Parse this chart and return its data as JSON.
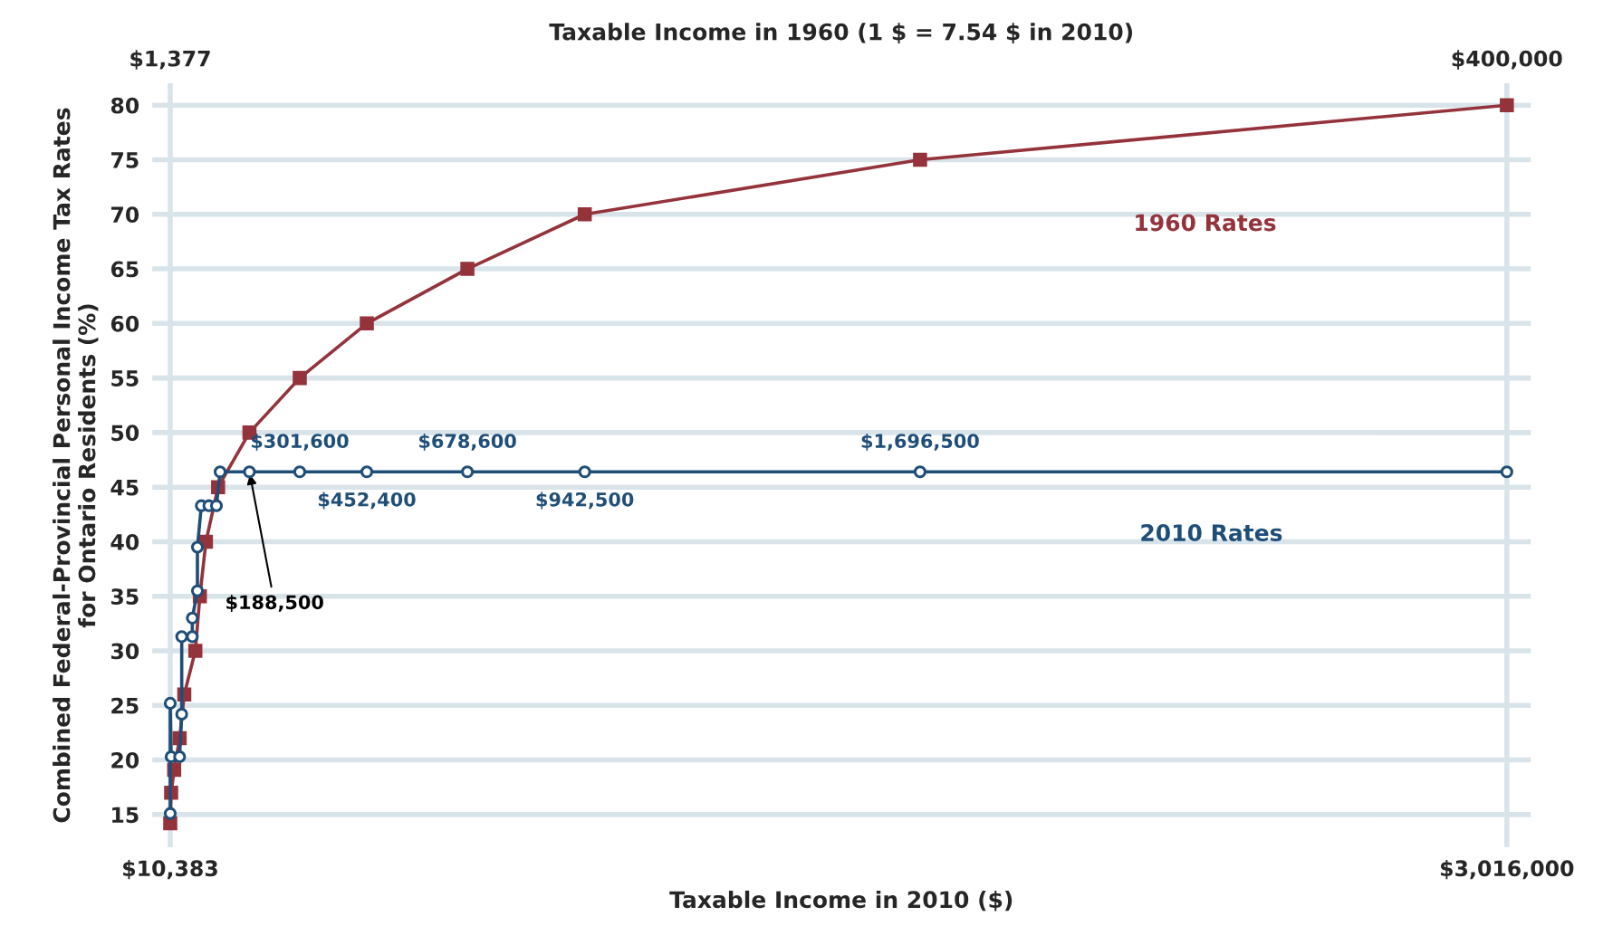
{
  "chart_data": {
    "type": "line",
    "xlabel": "Taxable Income in 2010 ($)",
    "x2label": "Taxable Income in 1960 (1 $ = 7.54 $ in 2010)",
    "ylabel": "Combined Federal-Provincial Personal Income Tax Rates\nfor Ontario Residents (%)",
    "xlim": [
      -30000,
      3070000
    ],
    "xticks": [
      {
        "value": 10383,
        "label": "$10,383"
      },
      {
        "value": 3016000,
        "label": "$3,016,000"
      }
    ],
    "x2lim": [
      -3979,
      407162
    ],
    "x2ticks": [
      {
        "value": 1377,
        "label": "$1,377"
      },
      {
        "value": 400000,
        "label": "$400,000"
      }
    ],
    "ylim": [
      12,
      82
    ],
    "yticks": [
      15,
      20,
      25,
      30,
      35,
      40,
      45,
      50,
      55,
      60,
      65,
      70,
      75,
      80
    ],
    "grid": true,
    "series": [
      {
        "name": "1960 Rates",
        "color": "#94333b",
        "marker": "square",
        "x": [
          10383,
          12400,
          19200,
          31500,
          41900,
          66800,
          77000,
          90600,
          118000,
          188500,
          301600,
          452400,
          678600,
          942500,
          1696500,
          3016000
        ],
        "values": [
          14.2,
          17,
          19.1,
          22,
          26,
          30,
          35,
          40,
          45,
          50,
          55,
          60,
          65,
          70,
          75,
          80
        ]
      },
      {
        "name": "2010 Rates",
        "color": "#1f4e79",
        "marker": "circle",
        "x": [
          10383,
          10400,
          12400,
          31400,
          36200,
          36200,
          60000,
          60000,
          71500,
          71500,
          80300,
          97300,
          114300,
          122500,
          188500,
          301600,
          452400,
          678600,
          942500,
          1696500,
          3016000
        ],
        "values": [
          15.1,
          25.2,
          20.3,
          20.3,
          24.2,
          31.3,
          31.3,
          33.0,
          35.5,
          39.5,
          43.3,
          43.3,
          43.3,
          46.4,
          46.4,
          46.4,
          46.4,
          46.4,
          46.4,
          46.4,
          46.4
        ]
      }
    ],
    "annotations": [
      {
        "text": "$188,500",
        "x": 188500,
        "y": 46.4
      },
      {
        "text": "$301,600",
        "x": 301600,
        "y": 46.4
      },
      {
        "text": "$452,400",
        "x": 452400,
        "y": 46.4
      },
      {
        "text": "$678,600",
        "x": 678600,
        "y": 46.4
      },
      {
        "text": "$942,500",
        "x": 942500,
        "y": 46.4
      },
      {
        "text": "$1,696,500",
        "x": 1696500,
        "y": 46.4
      }
    ]
  }
}
